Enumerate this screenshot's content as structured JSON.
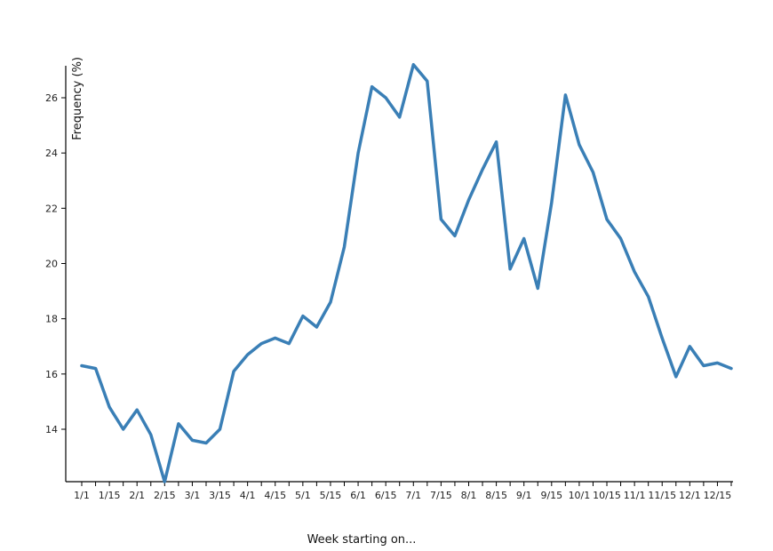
{
  "chart_data": {
    "type": "line",
    "xlabel": "Week starting on...",
    "ylabel": "Frequency (%)",
    "color": "#3a7fb6",
    "y_ticks": [
      14,
      16,
      18,
      20,
      22,
      24,
      26
    ],
    "ylim": [
      12.1,
      27.3
    ],
    "x_tick_labels": [
      "1/1",
      "1/15",
      "2/1",
      "2/15",
      "3/1",
      "3/15",
      "4/1",
      "4/15",
      "5/1",
      "5/15",
      "6/1",
      "6/15",
      "7/1",
      "7/15",
      "8/1",
      "8/15",
      "9/1",
      "9/15",
      "10/1",
      "10/15",
      "11/1",
      "11/15",
      "12/1",
      "12/15"
    ],
    "series": [
      {
        "values": [
          16.3,
          16.2,
          14.8,
          14.0,
          14.7,
          13.8,
          12.1,
          14.2,
          13.6,
          13.5,
          14.0,
          16.1,
          16.7,
          17.1,
          17.3,
          17.1,
          18.1,
          17.7,
          18.6,
          20.6,
          24.0,
          26.4,
          26.0,
          25.3,
          27.2,
          26.6,
          21.6,
          21.0,
          22.3,
          23.4,
          24.4,
          19.8,
          20.9,
          19.1,
          22.2,
          26.1,
          24.3,
          23.3,
          21.6,
          20.9,
          19.7,
          18.8,
          17.3,
          15.9,
          17.0,
          16.3,
          16.4,
          16.2
        ]
      }
    ]
  }
}
